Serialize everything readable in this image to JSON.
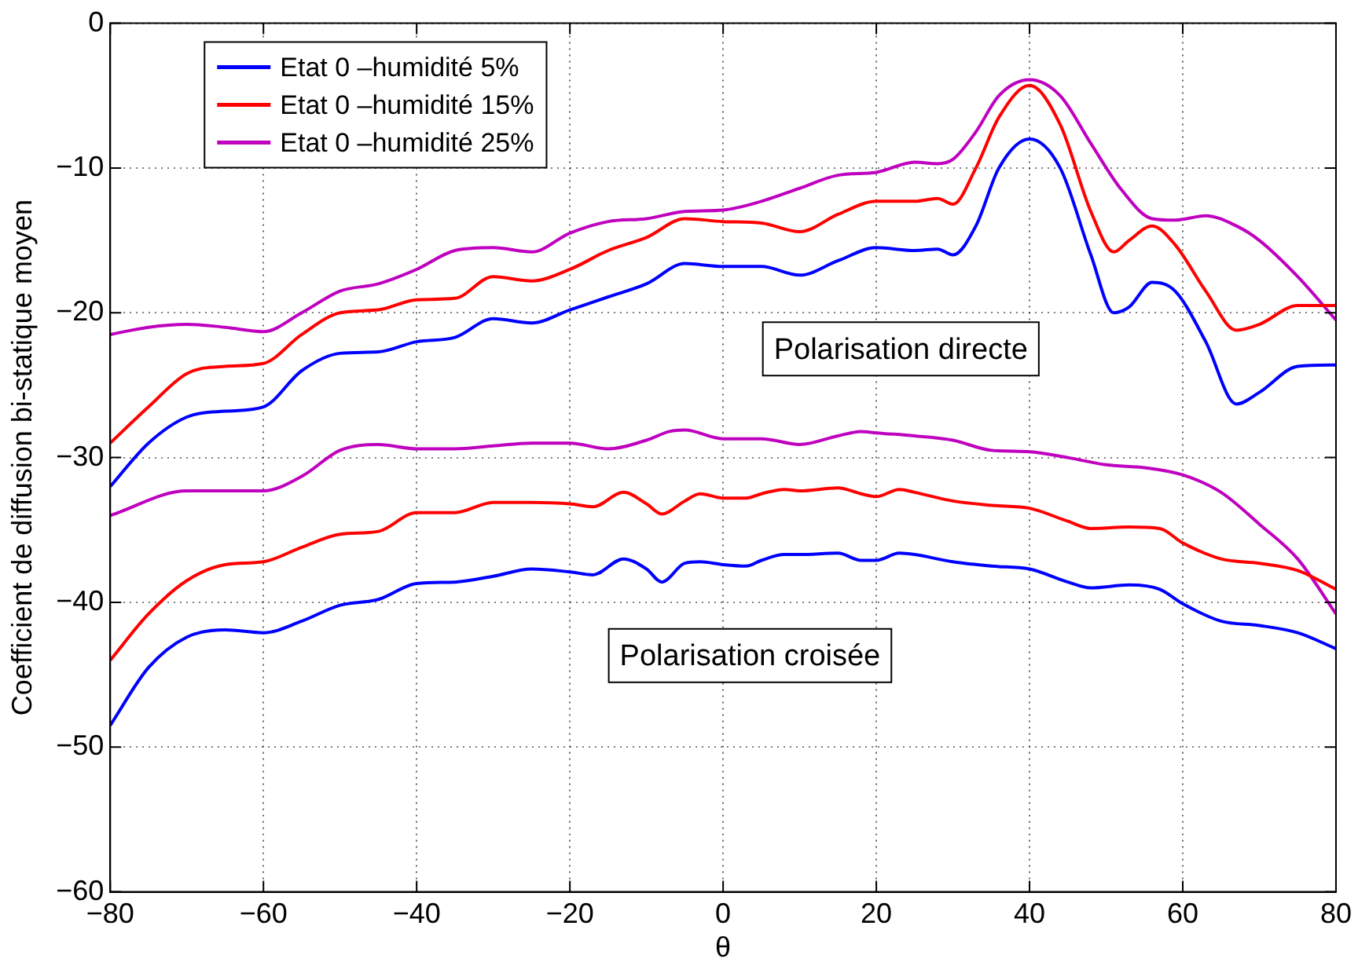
{
  "chart_data": {
    "type": "line",
    "xlabel": "θ",
    "ylabel": "Coefficient de diffusion bi-statique moyen",
    "xlim": [
      -80,
      80
    ],
    "xticks": [
      -80,
      -60,
      -40,
      -20,
      0,
      20,
      40,
      60,
      80
    ],
    "ylim": [
      -60,
      0
    ],
    "yticks": [
      -60,
      -50,
      -40,
      -30,
      -20,
      -10,
      0
    ],
    "grid": true,
    "legend": "top left",
    "marker": "none",
    "line_style": "solid",
    "annotations": [
      "Polarisation directe",
      "Polarisation croisée"
    ],
    "series": [
      {
        "name": "Etat 0 –humidité 5%",
        "color": "#0000ff",
        "x": [
          -80,
          -75,
          -70,
          -65,
          -60,
          -55,
          -50,
          -45,
          -40,
          -35,
          -30,
          -25,
          -20,
          -15,
          -10,
          -5,
          0,
          5,
          10,
          15,
          20,
          25,
          28,
          30,
          33,
          36,
          40,
          44,
          48,
          51,
          53,
          56,
          59,
          63,
          67,
          70,
          75,
          80
        ],
        "values": [
          -32,
          -29,
          -27.2,
          -26.8,
          -26.5,
          -24,
          -22.8,
          -22.7,
          -22,
          -21.7,
          -20.4,
          -20.7,
          -19.8,
          -18.9,
          -18,
          -16.6,
          -16.8,
          -16.8,
          -17.4,
          -16.4,
          -15.5,
          -15.7,
          -15.6,
          -16,
          -14,
          -10,
          -8,
          -10,
          -16,
          -20,
          -19.6,
          -17.9,
          -18.5,
          -22,
          -26.3,
          -25.5,
          -23.7,
          -23.6
        ]
      },
      {
        "name": "Etat 0 –humidité 15%",
        "color": "#ff0000",
        "x": [
          -80,
          -75,
          -70,
          -65,
          -60,
          -55,
          -50,
          -45,
          -40,
          -35,
          -30,
          -25,
          -20,
          -15,
          -10,
          -5,
          0,
          5,
          10,
          15,
          20,
          25,
          28,
          30,
          33,
          36,
          40,
          44,
          48,
          51,
          53,
          56,
          59,
          63,
          67,
          70,
          75,
          80
        ],
        "values": [
          -29,
          -26.5,
          -24.2,
          -23.7,
          -23.5,
          -21.5,
          -20,
          -19.8,
          -19.1,
          -19,
          -17.5,
          -17.8,
          -17,
          -15.7,
          -14.8,
          -13.5,
          -13.7,
          -13.8,
          -14.4,
          -13.2,
          -12.3,
          -12.3,
          -12.1,
          -12.5,
          -10,
          -6.5,
          -4.3,
          -7,
          -13,
          -15.8,
          -15,
          -14,
          -15.3,
          -18.5,
          -21.2,
          -20.8,
          -19.5,
          -19.5
        ]
      },
      {
        "name": "Etat 0 –humidité 25%",
        "color": "#bf00bf",
        "x": [
          -80,
          -75,
          -70,
          -65,
          -60,
          -55,
          -50,
          -45,
          -40,
          -35,
          -30,
          -25,
          -20,
          -15,
          -10,
          -5,
          0,
          5,
          10,
          15,
          20,
          25,
          28,
          30,
          33,
          36,
          40,
          44,
          48,
          52,
          56,
          59,
          63,
          67,
          70,
          75,
          80
        ],
        "values": [
          -21.5,
          -21,
          -20.8,
          -21,
          -21.3,
          -20,
          -18.5,
          -18,
          -17,
          -15.7,
          -15.5,
          -15.8,
          -14.5,
          -13.7,
          -13.5,
          -13,
          -12.9,
          -12.3,
          -11.4,
          -10.5,
          -10.3,
          -9.6,
          -9.7,
          -9.4,
          -7.5,
          -5,
          -3.9,
          -5,
          -8.3,
          -11.5,
          -13.5,
          -13.6,
          -13.3,
          -14,
          -15,
          -17.5,
          -20.5
        ]
      },
      {
        "color": "#0000ff",
        "x": [
          -80,
          -75,
          -70,
          -65,
          -60,
          -55,
          -50,
          -45,
          -40,
          -35,
          -30,
          -25,
          -20,
          -17,
          -13,
          -10,
          -8,
          -5,
          -3,
          0,
          3,
          5,
          8,
          10,
          15,
          18,
          20,
          23,
          25,
          30,
          35,
          40,
          45,
          48,
          53,
          57,
          60,
          65,
          70,
          75,
          80
        ],
        "values": [
          -48.5,
          -44.5,
          -42.4,
          -41.9,
          -42.1,
          -41.3,
          -40.2,
          -39.8,
          -38.7,
          -38.6,
          -38.2,
          -37.7,
          -37.9,
          -38.1,
          -37,
          -37.7,
          -38.6,
          -37.3,
          -37.2,
          -37.4,
          -37.5,
          -37.1,
          -36.7,
          -36.7,
          -36.6,
          -37.1,
          -37.1,
          -36.6,
          -36.7,
          -37.2,
          -37.5,
          -37.7,
          -38.6,
          -39,
          -38.8,
          -39.1,
          -40.1,
          -41.3,
          -41.6,
          -42.1,
          -43.2
        ]
      },
      {
        "color": "#ff0000",
        "x": [
          -80,
          -75,
          -70,
          -65,
          -60,
          -55,
          -50,
          -45,
          -40,
          -35,
          -30,
          -25,
          -20,
          -17,
          -13,
          -10,
          -8,
          -5,
          -3,
          0,
          3,
          5,
          8,
          10,
          15,
          18,
          20,
          23,
          25,
          30,
          35,
          40,
          45,
          48,
          53,
          57,
          60,
          65,
          70,
          75,
          80
        ],
        "values": [
          -44,
          -40.8,
          -38.5,
          -37.4,
          -37.2,
          -36.2,
          -35.3,
          -35.1,
          -33.8,
          -33.8,
          -33.1,
          -33.1,
          -33.2,
          -33.4,
          -32.4,
          -33.2,
          -33.9,
          -33,
          -32.5,
          -32.8,
          -32.8,
          -32.5,
          -32.2,
          -32.3,
          -32.1,
          -32.5,
          -32.7,
          -32.2,
          -32.4,
          -33,
          -33.3,
          -33.5,
          -34.4,
          -34.9,
          -34.8,
          -34.9,
          -35.9,
          -37,
          -37.3,
          -37.8,
          -39.1
        ]
      },
      {
        "color": "#bf00bf",
        "x": [
          -80,
          -70,
          -60,
          -55,
          -50,
          -45,
          -40,
          -35,
          -30,
          -25,
          -20,
          -15,
          -10,
          -7,
          -5,
          0,
          5,
          10,
          15,
          18,
          20,
          25,
          30,
          35,
          40,
          45,
          50,
          55,
          60,
          65,
          70,
          75,
          80
        ],
        "values": [
          -34,
          -32.3,
          -32.3,
          -31.3,
          -29.5,
          -29.1,
          -29.4,
          -29.4,
          -29.2,
          -29,
          -29,
          -29.4,
          -28.8,
          -28.2,
          -28.1,
          -28.7,
          -28.7,
          -29.1,
          -28.5,
          -28.2,
          -28.3,
          -28.5,
          -28.8,
          -29.5,
          -29.6,
          -30,
          -30.5,
          -30.7,
          -31.2,
          -32.4,
          -34.6,
          -37,
          -40.8
        ]
      }
    ]
  }
}
